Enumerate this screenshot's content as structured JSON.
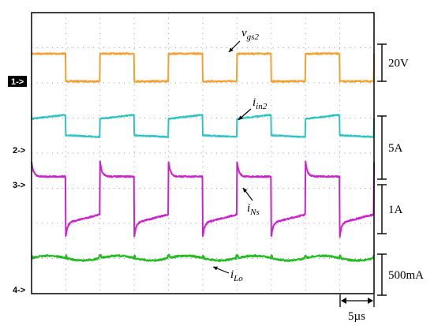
{
  "chart_data": {
    "type": "line",
    "title": "",
    "xlabel": "",
    "ylabel": "",
    "grid": true,
    "x_divisions": 10,
    "y_divisions": 8,
    "time_per_div": "5µs",
    "x_unit": "µs",
    "x_range": [
      0,
      50
    ],
    "switching_period_us": 10,
    "channels": [
      {
        "id": "1",
        "marker": "1",
        "marker_style": "filled",
        "name": "v",
        "sub": "gs2",
        "scale_label": "20V",
        "color": "#f5a030",
        "low": 0,
        "high": 20,
        "duty": 0.5,
        "phase_us": 5,
        "noise": 1.5,
        "unit": "V"
      },
      {
        "id": "2",
        "marker": "2",
        "marker_style": "outline",
        "name": "i",
        "sub": "in2",
        "scale_label": "5A",
        "color": "#2ec4c4",
        "base": 1.2,
        "jump": 4.1,
        "slope_end": 4.8,
        "fall_to": 0.9,
        "unit": "A",
        "noise": 0.35
      },
      {
        "id": "3",
        "marker": "3",
        "marker_style": "outline",
        "name": "i",
        "sub": "Ns",
        "scale_label": "1A",
        "color": "#cc22cc",
        "low_start": -1.05,
        "low_end": -0.7,
        "high_peak": 1.45,
        "high_level": 0.85,
        "spike_low": -1.6,
        "unit": "A",
        "noise": 0.06
      },
      {
        "id": "4",
        "marker": "4",
        "marker_style": "outline",
        "name": "i",
        "sub": "Lo",
        "scale_label": "500mA",
        "color": "#22bb22",
        "mean": 0,
        "ripple": 0.05,
        "unit": "A",
        "noise": 0.04
      }
    ]
  }
}
